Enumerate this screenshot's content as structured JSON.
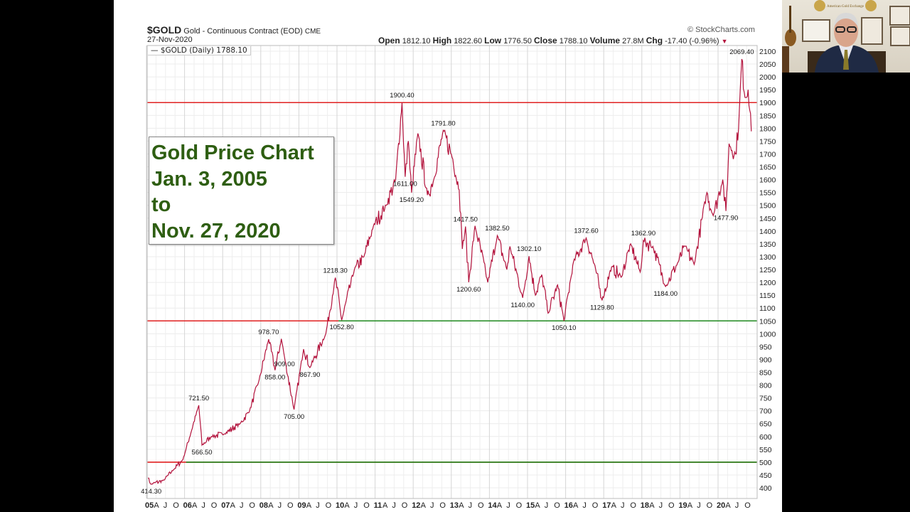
{
  "header": {
    "symbol": "$GOLD",
    "name": "Gold - Continuous Contract (EOD)",
    "exchange": "CME",
    "date": "27-Nov-2020",
    "copyright": "© StockCharts.com",
    "legend": "— $GOLD (Daily) 1788.10",
    "open_label": "Open",
    "open": "1812.10",
    "high_label": "High",
    "high": "1822.60",
    "low_label": "Low",
    "low": "1776.50",
    "close_label": "Close",
    "close": "1788.10",
    "volume_label": "Volume",
    "volume": "27.8M",
    "chg_label": "Chg",
    "chg": "-17.40 (-0.96%)",
    "chg_icon": "triangle-down-icon"
  },
  "title_box": {
    "lines": [
      "Gold Price Chart",
      "Jan. 3, 2005",
      "to",
      "Nov. 27, 2020"
    ],
    "color": "#2e5e12"
  },
  "webcam": {
    "sign_text": "American Gold Exchange"
  },
  "chart_data": {
    "type": "line",
    "title": "$GOLD Gold - Continuous Contract (EOD) CME",
    "xlim": [
      "2005-01",
      "2020-12"
    ],
    "ylim": [
      380,
      2110
    ],
    "y_ticks": [
      400,
      450,
      500,
      550,
      600,
      650,
      700,
      750,
      800,
      850,
      900,
      950,
      1000,
      1050,
      1100,
      1150,
      1200,
      1250,
      1300,
      1350,
      1400,
      1450,
      1500,
      1550,
      1600,
      1650,
      1700,
      1750,
      1800,
      1850,
      1900,
      1950,
      2000,
      2050,
      2100
    ],
    "x_tick_labels": [
      "05",
      "A",
      "J",
      "O",
      "06",
      "A",
      "J",
      "O",
      "07",
      "A",
      "J",
      "O",
      "08",
      "A",
      "J",
      "O",
      "09",
      "A",
      "J",
      "O",
      "10",
      "A",
      "J",
      "O",
      "11",
      "A",
      "J",
      "O",
      "12",
      "A",
      "J",
      "O",
      "13",
      "A",
      "J",
      "O",
      "14",
      "A",
      "J",
      "O",
      "15",
      "A",
      "J",
      "O",
      "16",
      "A",
      "J",
      "O",
      "17",
      "A",
      "J",
      "O",
      "18",
      "A",
      "J",
      "O",
      "19",
      "A",
      "J",
      "O",
      "20",
      "A",
      "J",
      "O"
    ],
    "grid": true,
    "legend": "top-left",
    "series": [
      {
        "name": "$GOLD (Daily)",
        "color": "#b3123c",
        "points": [
          [
            "2005-01",
            438
          ],
          [
            "2005-02",
            414.3
          ],
          [
            "2005-06",
            430
          ],
          [
            "2005-09",
            470
          ],
          [
            "2005-12",
            510
          ],
          [
            "2006-05",
            721.5
          ],
          [
            "2006-06",
            566.5
          ],
          [
            "2006-09",
            600
          ],
          [
            "2007-01",
            610
          ],
          [
            "2007-06",
            650
          ],
          [
            "2007-09",
            700
          ],
          [
            "2007-12",
            820
          ],
          [
            "2008-03",
            978.7
          ],
          [
            "2008-05",
            858
          ],
          [
            "2008-07",
            980
          ],
          [
            "2008-08",
            909
          ],
          [
            "2008-11",
            705
          ],
          [
            "2009-02",
            940
          ],
          [
            "2009-04",
            867.9
          ],
          [
            "2009-09",
            1000
          ],
          [
            "2009-12",
            1218.3
          ],
          [
            "2010-02",
            1052.8
          ],
          [
            "2010-06",
            1250
          ],
          [
            "2010-09",
            1300
          ],
          [
            "2010-12",
            1420
          ],
          [
            "2011-04",
            1500
          ],
          [
            "2011-07",
            1600
          ],
          [
            "2011-09",
            1900.4
          ],
          [
            "2011-10",
            1611
          ],
          [
            "2011-11",
            1750
          ],
          [
            "2011-12",
            1549.2
          ],
          [
            "2012-02",
            1780
          ],
          [
            "2012-05",
            1540
          ],
          [
            "2012-07",
            1600
          ],
          [
            "2012-10",
            1791.8
          ],
          [
            "2013-01",
            1680
          ],
          [
            "2013-03",
            1560
          ],
          [
            "2013-04",
            1330
          ],
          [
            "2013-05",
            1417.5
          ],
          [
            "2013-06",
            1200.6
          ],
          [
            "2013-08",
            1420
          ],
          [
            "2013-12",
            1200
          ],
          [
            "2014-03",
            1382.5
          ],
          [
            "2014-06",
            1250
          ],
          [
            "2014-07",
            1340
          ],
          [
            "2014-11",
            1140
          ],
          [
            "2015-01",
            1302.1
          ],
          [
            "2015-03",
            1150
          ],
          [
            "2015-05",
            1230
          ],
          [
            "2015-07",
            1080
          ],
          [
            "2015-10",
            1190
          ],
          [
            "2015-12",
            1050.1
          ],
          [
            "2016-03",
            1280
          ],
          [
            "2016-07",
            1372.6
          ],
          [
            "2016-10",
            1250
          ],
          [
            "2016-12",
            1129.8
          ],
          [
            "2017-03",
            1260
          ],
          [
            "2017-06",
            1220
          ],
          [
            "2017-09",
            1350
          ],
          [
            "2017-12",
            1240
          ],
          [
            "2018-01",
            1362.9
          ],
          [
            "2018-04",
            1340
          ],
          [
            "2018-08",
            1184
          ],
          [
            "2018-12",
            1280
          ],
          [
            "2019-02",
            1340
          ],
          [
            "2019-05",
            1270
          ],
          [
            "2019-09",
            1550
          ],
          [
            "2019-11",
            1460
          ],
          [
            "2020-02",
            1600
          ],
          [
            "2020-03",
            1477.9
          ],
          [
            "2020-04",
            1740
          ],
          [
            "2020-06",
            1700
          ],
          [
            "2020-07",
            1800
          ],
          [
            "2020-08",
            2069.4
          ],
          [
            "2020-09",
            1920
          ],
          [
            "2020-10",
            1950
          ],
          [
            "2020-11",
            1788.1
          ]
        ]
      }
    ],
    "annotations": [
      {
        "date": "2005-02",
        "value": 414.3,
        "label": "414.30",
        "pos": "below"
      },
      {
        "date": "2006-05",
        "value": 721.5,
        "label": "721.50",
        "pos": "above"
      },
      {
        "date": "2006-06",
        "value": 566.5,
        "label": "566.50",
        "pos": "below"
      },
      {
        "date": "2008-03",
        "value": 978.7,
        "label": "978.70",
        "pos": "above"
      },
      {
        "date": "2008-05",
        "value": 858,
        "label": "858.00",
        "pos": "below"
      },
      {
        "date": "2008-08",
        "value": 909,
        "label": "909.00",
        "pos": "below"
      },
      {
        "date": "2008-11",
        "value": 705,
        "label": "705.00",
        "pos": "below"
      },
      {
        "date": "2009-04",
        "value": 867.9,
        "label": "867.90",
        "pos": "below"
      },
      {
        "date": "2009-12",
        "value": 1218.3,
        "label": "1218.30",
        "pos": "above"
      },
      {
        "date": "2010-02",
        "value": 1052.8,
        "label": "1052.80",
        "pos": "below"
      },
      {
        "date": "2011-09",
        "value": 1900.4,
        "label": "1900.40",
        "pos": "above"
      },
      {
        "date": "2011-10",
        "value": 1611,
        "label": "1611.00",
        "pos": "below"
      },
      {
        "date": "2011-12",
        "value": 1549.2,
        "label": "1549.20",
        "pos": "below"
      },
      {
        "date": "2012-10",
        "value": 1791.8,
        "label": "1791.80",
        "pos": "above"
      },
      {
        "date": "2013-05",
        "value": 1417.5,
        "label": "1417.50",
        "pos": "above"
      },
      {
        "date": "2013-06",
        "value": 1200.6,
        "label": "1200.60",
        "pos": "below"
      },
      {
        "date": "2014-03",
        "value": 1382.5,
        "label": "1382.50",
        "pos": "above"
      },
      {
        "date": "2014-11",
        "value": 1140,
        "label": "1140.00",
        "pos": "below"
      },
      {
        "date": "2015-01",
        "value": 1302.1,
        "label": "1302.10",
        "pos": "above"
      },
      {
        "date": "2015-12",
        "value": 1050.1,
        "label": "1050.10",
        "pos": "below"
      },
      {
        "date": "2016-07",
        "value": 1372.6,
        "label": "1372.60",
        "pos": "above"
      },
      {
        "date": "2016-12",
        "value": 1129.8,
        "label": "1129.80",
        "pos": "below"
      },
      {
        "date": "2018-01",
        "value": 1362.9,
        "label": "1362.90",
        "pos": "above"
      },
      {
        "date": "2018-08",
        "value": 1184,
        "label": "1184.00",
        "pos": "below"
      },
      {
        "date": "2020-03",
        "value": 1477.9,
        "label": "1477.90",
        "pos": "below"
      },
      {
        "date": "2020-08",
        "value": 2069.4,
        "label": "2069.40",
        "pos": "above"
      }
    ],
    "levels": [
      {
        "value": 1900,
        "color": "#e02020"
      },
      {
        "value": 1050,
        "color": "#e02020",
        "overlay_color": "#1f8a1f",
        "overlay_from": "2010-01"
      },
      {
        "value": 500,
        "color": "#e02020",
        "overlay_color": "#1f8a1f",
        "overlay_from": "2006-01"
      }
    ]
  }
}
